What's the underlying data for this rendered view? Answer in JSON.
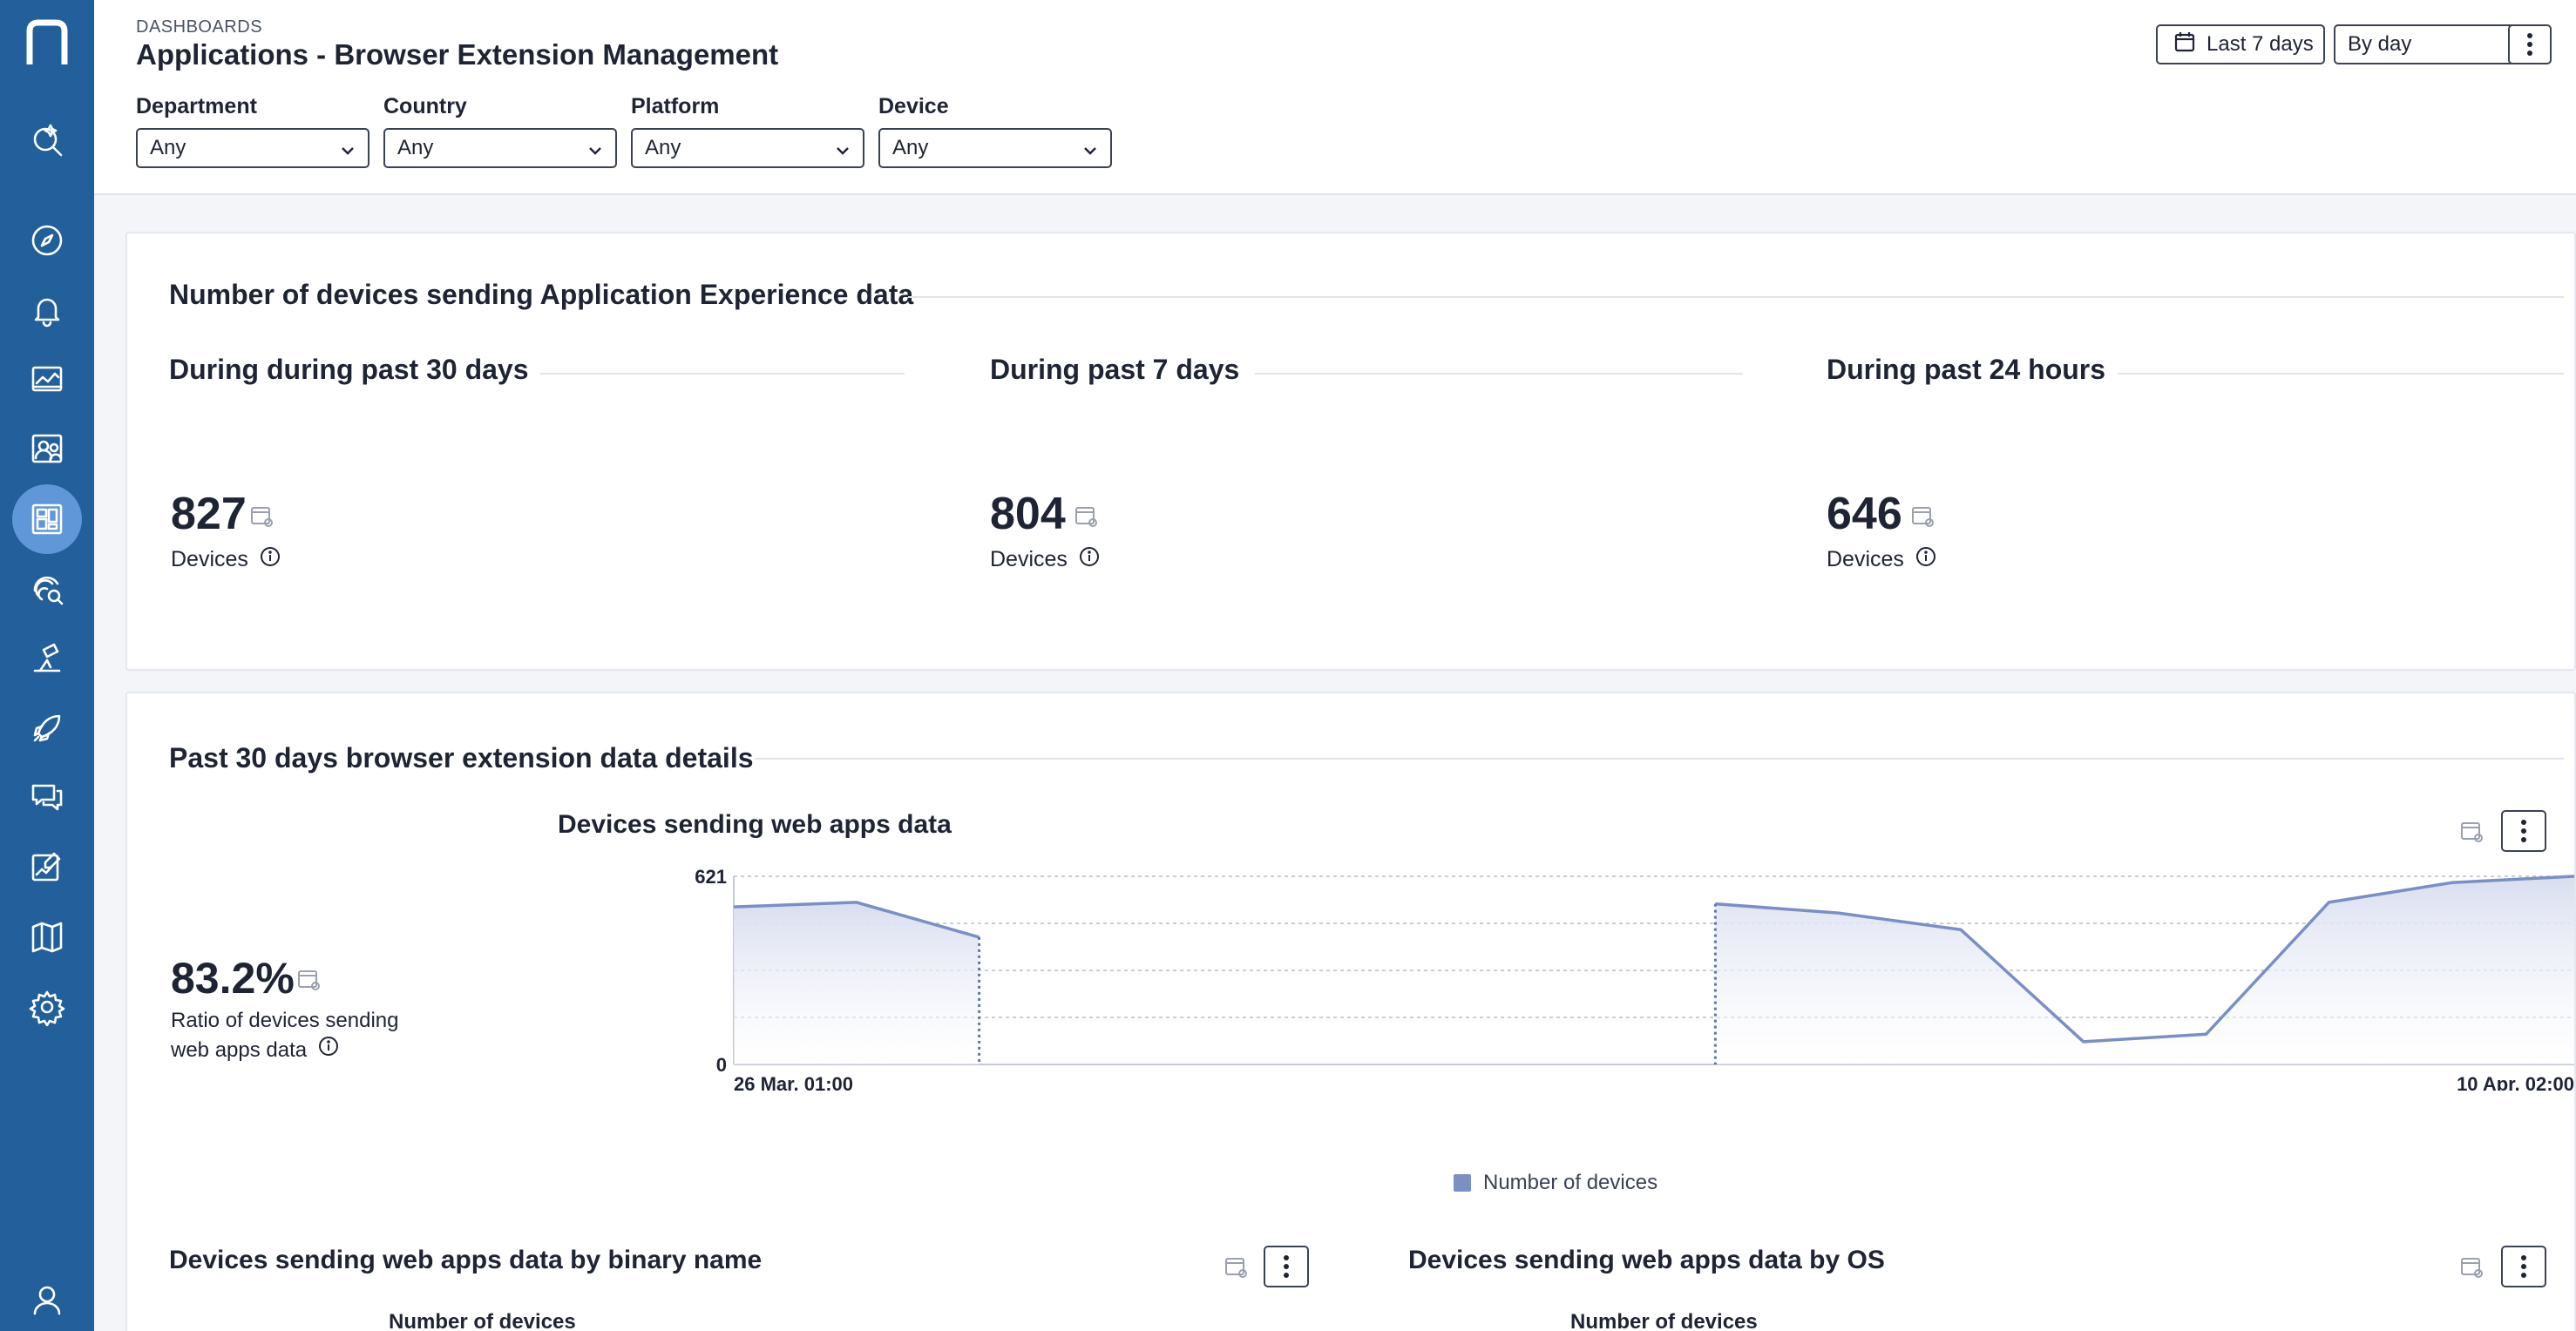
{
  "header": {
    "breadcrumb": "DASHBOARDS",
    "title": "Applications - Browser Extension Management",
    "date_range": "Last 7 days",
    "granularity": "By day"
  },
  "filters": [
    {
      "label": "Department",
      "value": "Any"
    },
    {
      "label": "Country",
      "value": "Any"
    },
    {
      "label": "Platform",
      "value": "Any"
    },
    {
      "label": "Device",
      "value": "Any"
    }
  ],
  "sidebar": {
    "icons": [
      "nexthink-logo",
      "search-icon",
      "compass-icon",
      "bell-icon",
      "monitor-chart-icon",
      "users-icon",
      "dashboard-icon",
      "fingerprint-search-icon",
      "lab-icon",
      "rocket-icon",
      "chat-icon",
      "edit-chart-icon",
      "book-icon",
      "gear-icon",
      "user-icon"
    ],
    "colors": {
      "background": "#225f9b",
      "active": "#5f97d8"
    }
  },
  "devices_card": {
    "title": "Number of devices sending Application Experience data",
    "metrics": [
      {
        "period": "During during past 30 days",
        "value": "827",
        "label": "Devices"
      },
      {
        "period": "During past 7 days",
        "value": "804",
        "label": "Devices"
      },
      {
        "period": "During past 24 hours",
        "value": "646",
        "label": "Devices"
      }
    ]
  },
  "details_card": {
    "title": "Past 30 days browser extension data details",
    "ratio": {
      "value": "83.2%",
      "label_line1": "Ratio of devices sending",
      "label_line2": "web apps data"
    },
    "chart_title": "Devices sending web apps data",
    "bottom_left_title": "Devices sending web apps data by binary name",
    "bottom_right_title": "Devices sending web apps data by OS",
    "bottom_col_header": "Number of devices"
  },
  "chart_data": {
    "type": "area",
    "title": "Devices sending web apps data",
    "x_start_label": "26 Mar, 01:00",
    "x_end_label": "10 Apr, 02:00",
    "y_ticks": [
      "621",
      "0"
    ],
    "ylim": [
      0,
      621
    ],
    "legend": "Number of devices",
    "legend_placement": "bottom-center",
    "grid": true,
    "color": "#7a8fc4",
    "series": [
      {
        "name": "Number of devices",
        "segments": [
          [
            {
              "t": 0,
              "y": 520
            },
            {
              "t": 1,
              "y": 535
            },
            {
              "t": 2,
              "y": 420
            }
          ],
          [
            {
              "t": 8,
              "y": 530
            },
            {
              "t": 9,
              "y": 500
            },
            {
              "t": 10,
              "y": 445
            },
            {
              "t": 11,
              "y": 75
            },
            {
              "t": 12,
              "y": 100
            },
            {
              "t": 13,
              "y": 535
            },
            {
              "t": 14,
              "y": 600
            },
            {
              "t": 15,
              "y": 621
            }
          ]
        ]
      }
    ],
    "gaps": [
      2,
      8
    ],
    "x_count": 15
  }
}
